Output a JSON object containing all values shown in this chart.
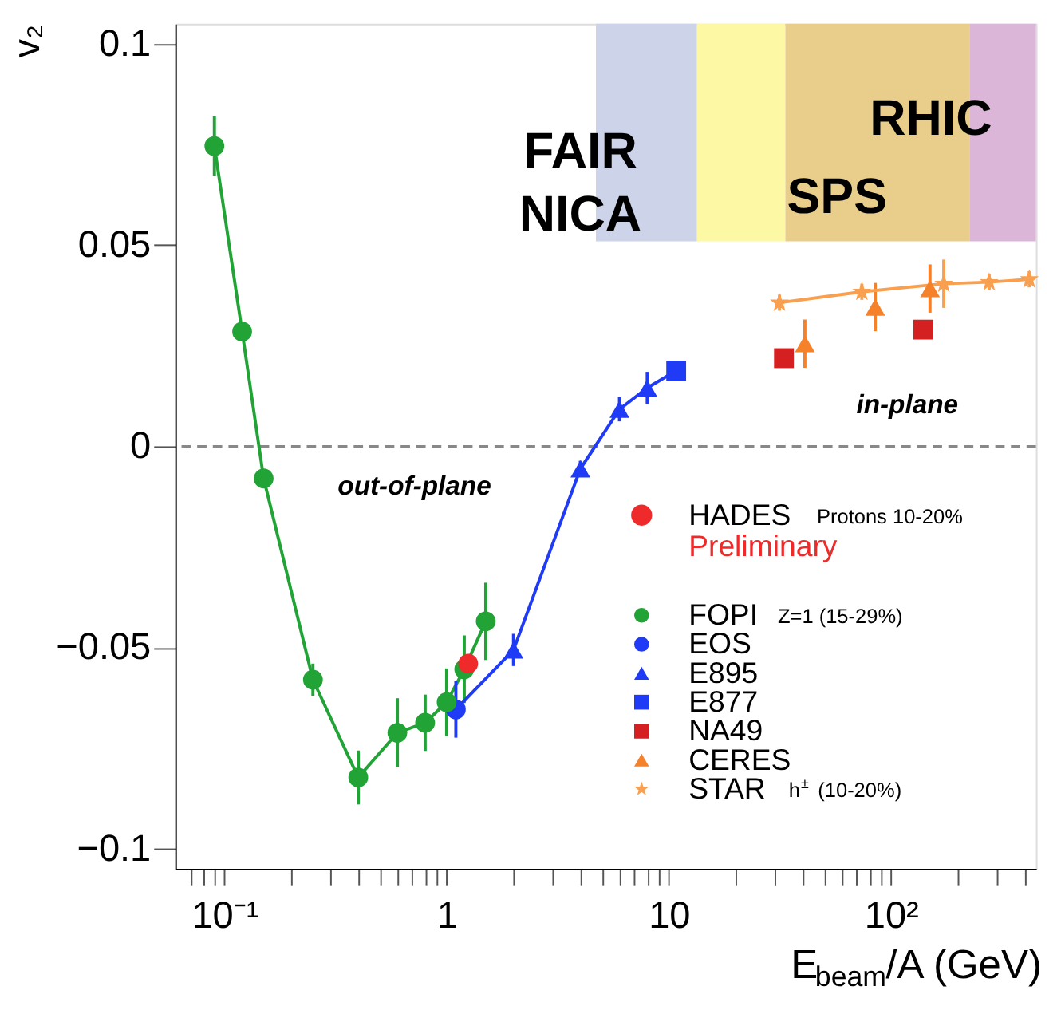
{
  "chart_data": {
    "type": "scatter",
    "xlabel": "E$_{beam}$/A (GeV)",
    "ylabel": "v₂",
    "log": "x",
    "xlim": [
      0.06,
      450
    ],
    "xticks": [
      {
        "value": 0.07,
        "label": null
      },
      {
        "value": 0.08,
        "label": null
      },
      {
        "value": 0.09,
        "label": null
      },
      {
        "value": 0.1,
        "label": "10⁻¹"
      },
      {
        "value": 0.2,
        "label": null
      },
      {
        "value": 0.3,
        "label": null
      },
      {
        "value": 0.4,
        "label": null
      },
      {
        "value": 0.5,
        "label": null
      },
      {
        "value": 0.6,
        "label": null
      },
      {
        "value": 0.7,
        "label": null
      },
      {
        "value": 0.8,
        "label": null
      },
      {
        "value": 0.9,
        "label": null
      },
      1,
      {
        "value": 2,
        "label": null
      },
      {
        "value": 3,
        "label": null
      },
      {
        "value": 4,
        "label": null
      },
      {
        "value": 5,
        "label": null
      },
      {
        "value": 6,
        "label": null
      },
      {
        "value": 7,
        "label": null
      },
      {
        "value": 8,
        "label": null
      },
      {
        "value": 9,
        "label": null
      },
      10,
      {
        "value": 20,
        "label": null
      },
      {
        "value": 30,
        "label": null
      },
      {
        "value": 40,
        "label": null
      },
      {
        "value": 50,
        "label": null
      },
      {
        "value": 60,
        "label": null
      },
      {
        "value": 70,
        "label": null
      },
      {
        "value": 80,
        "label": null
      },
      {
        "value": 90,
        "label": null
      },
      {
        "value": 100,
        "label": "10²"
      },
      {
        "value": 200,
        "label": null
      },
      {
        "value": 300,
        "label": null
      },
      {
        "value": 400,
        "label": null
      }
    ],
    "ylim": [
      -0.105,
      0.105
    ],
    "yticks": [
      {
        "value": -0.1,
        "label": "−0.1"
      },
      {
        "value": -0.05,
        "label": "−0.05"
      },
      0,
      0.05,
      0.1
    ],
    "grid": false,
    "legend": "right",
    "series": [
      {
        "name": "HADES",
        "marker": "circle",
        "color": "#ee2a2a",
        "x": [
          1.25
        ],
        "values": [
          -0.054
        ]
      },
      {
        "name": "FOPI",
        "type": "line",
        "marker": "circle",
        "color": "#21a336",
        "x": [
          0.09,
          0.12,
          0.15,
          0.25,
          0.4,
          0.6,
          0.8,
          1.0,
          1.2,
          1.5
        ],
        "values": [
          0.0746,
          0.0285,
          -0.008,
          -0.058,
          -0.0823,
          -0.0712,
          -0.0687,
          -0.0636,
          -0.0554,
          -0.0435
        ],
        "errors": [
          0.0074,
          0.002,
          0.002,
          0.004,
          0.0067,
          0.0086,
          0.007,
          0.0084,
          0.0084,
          0.0096
        ]
      },
      {
        "name": "EOS",
        "marker": "circle",
        "color": "#1f3bf5",
        "x": [
          1.1
        ],
        "values": [
          -0.0654
        ],
        "errors": [
          0.007
        ]
      },
      {
        "name": "E895",
        "marker": "triangle",
        "color": "#1f3bf5",
        "x": [
          2,
          4,
          6,
          8
        ],
        "values": [
          -0.0506,
          -0.0056,
          0.0092,
          0.0145
        ],
        "errors": [
          0.004,
          0.002,
          0.003,
          0.004
        ]
      },
      {
        "name": "E877",
        "marker": "square",
        "color": "#1f3bf5",
        "x": [
          10.8
        ],
        "values": [
          0.0188
        ]
      },
      {
        "type": "line",
        "marker": "none",
        "color": "#1f3bf5",
        "x": [
          1.1,
          2,
          4,
          6,
          8,
          10.8
        ],
        "values": [
          -0.0654,
          -0.0506,
          -0.0056,
          0.0092,
          0.0145,
          0.0188
        ]
      },
      {
        "name": "NA49",
        "marker": "square",
        "color": "#d42020",
        "x": [
          33,
          140
        ],
        "values": [
          0.0219,
          0.029
        ]
      },
      {
        "name": "CERES",
        "marker": "triangle",
        "color": "#f5812b",
        "x": [
          41,
          85,
          150
        ],
        "values": [
          0.0255,
          0.0346,
          0.0392
        ],
        "errors": [
          0.006,
          0.006,
          0.006
        ]
      },
      {
        "name": "STAR",
        "type": "line",
        "marker": "star",
        "color": "#f9a050",
        "x": [
          31.5,
          74,
          173,
          277,
          420
        ],
        "values": [
          0.0357,
          0.0384,
          0.0404,
          0.0408,
          0.0415
        ],
        "errors": [
          0.002,
          0.002,
          0.006,
          0.002,
          0.002
        ]
      }
    ],
    "ref_lines": [
      {
        "axis": "y",
        "value": 0,
        "color": "#888888",
        "line_style": "dashed"
      }
    ],
    "bands": [
      {
        "axis": "x",
        "from": 4.7,
        "to": 13.4,
        "label": "FAIR NICA",
        "color": "#cdd3e8"
      },
      {
        "axis": "x",
        "from": 13.4,
        "to": 33.5,
        "color": "#fcf8a3"
      },
      {
        "axis": "x",
        "from": 33.5,
        "to": 227,
        "label": "SPS",
        "color": "#e9cd8a"
      },
      {
        "axis": "x",
        "from": 227,
        "to": 450,
        "label": "RHIC",
        "color": "#dcb6d9"
      }
    ],
    "annotations": [
      "out-of-plane",
      "in-plane",
      "Protons 10-20%",
      "Preliminary",
      "Z=1 (15-29%)",
      "h$^{±}$ (10-20%)"
    ]
  }
}
